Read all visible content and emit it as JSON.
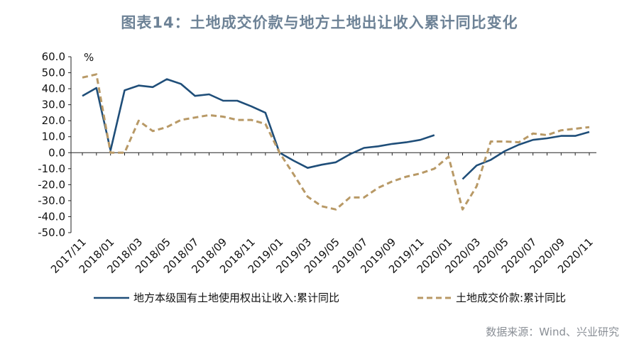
{
  "chart_data": {
    "type": "line",
    "title": "图表14：土地成交价款与地方土地出让收入累计同比变化",
    "unit": "%",
    "ylim": [
      -50,
      60
    ],
    "yticks": [
      "60.0",
      "50.0",
      "40.0",
      "30.0",
      "20.0",
      "10.0",
      "0.0",
      "-10.0",
      "-20.0",
      "-30.0",
      "-40.0",
      "-50.0"
    ],
    "xtick_labels": [
      "2017/11",
      "2018/01",
      "2018/03",
      "2018/05",
      "2018/07",
      "2018/09",
      "2018/11",
      "2019/01",
      "2019/03",
      "2019/05",
      "2019/07",
      "2019/09",
      "2019/11",
      "2020/01",
      "2020/03",
      "2020/05",
      "2020/07",
      "2020/09",
      "2020/11"
    ],
    "x": [
      "2017/11",
      "2017/12",
      "2018/01",
      "2018/02",
      "2018/03",
      "2018/04",
      "2018/05",
      "2018/06",
      "2018/07",
      "2018/08",
      "2018/09",
      "2018/10",
      "2018/11",
      "2018/12",
      "2019/01",
      "2019/02",
      "2019/03",
      "2019/04",
      "2019/05",
      "2019/06",
      "2019/07",
      "2019/08",
      "2019/09",
      "2019/10",
      "2019/11",
      "2019/12",
      "2020/01",
      "2020/02",
      "2020/03",
      "2020/04",
      "2020/05",
      "2020/06",
      "2020/07",
      "2020/08",
      "2020/09",
      "2020/10",
      "2020/11"
    ],
    "series": [
      {
        "name": "地方本级国有土地使用权出让收入:累计同比",
        "color": "#1f4e79",
        "style": "solid",
        "values": [
          35.5,
          40.5,
          1.5,
          39,
          42,
          41,
          46,
          43,
          35.5,
          36.5,
          32.5,
          32.5,
          29,
          25,
          0,
          -5,
          -9.5,
          -7.5,
          -6,
          -1,
          3,
          4,
          5.5,
          6.5,
          8,
          11,
          null,
          -16.5,
          -8,
          -4.5,
          1,
          5,
          8,
          9,
          10.5,
          10.5,
          13
        ]
      },
      {
        "name": "土地成交价款:累计同比",
        "color": "#b89966",
        "style": "dashed",
        "values": [
          47,
          49,
          0,
          0,
          20,
          13.5,
          16,
          20.5,
          22,
          23.5,
          22.5,
          20.5,
          20.5,
          18,
          0,
          -13.5,
          -27.5,
          -33.5,
          -35.5,
          -28,
          -28,
          -22,
          -18,
          -15,
          -13,
          -10,
          -2.5,
          -35.5,
          -21,
          7,
          7,
          6.5,
          12,
          11,
          14,
          15,
          16
        ]
      }
    ],
    "grid": false,
    "legend_position": "bottom"
  },
  "source": "数据来源：Wind、兴业研究"
}
